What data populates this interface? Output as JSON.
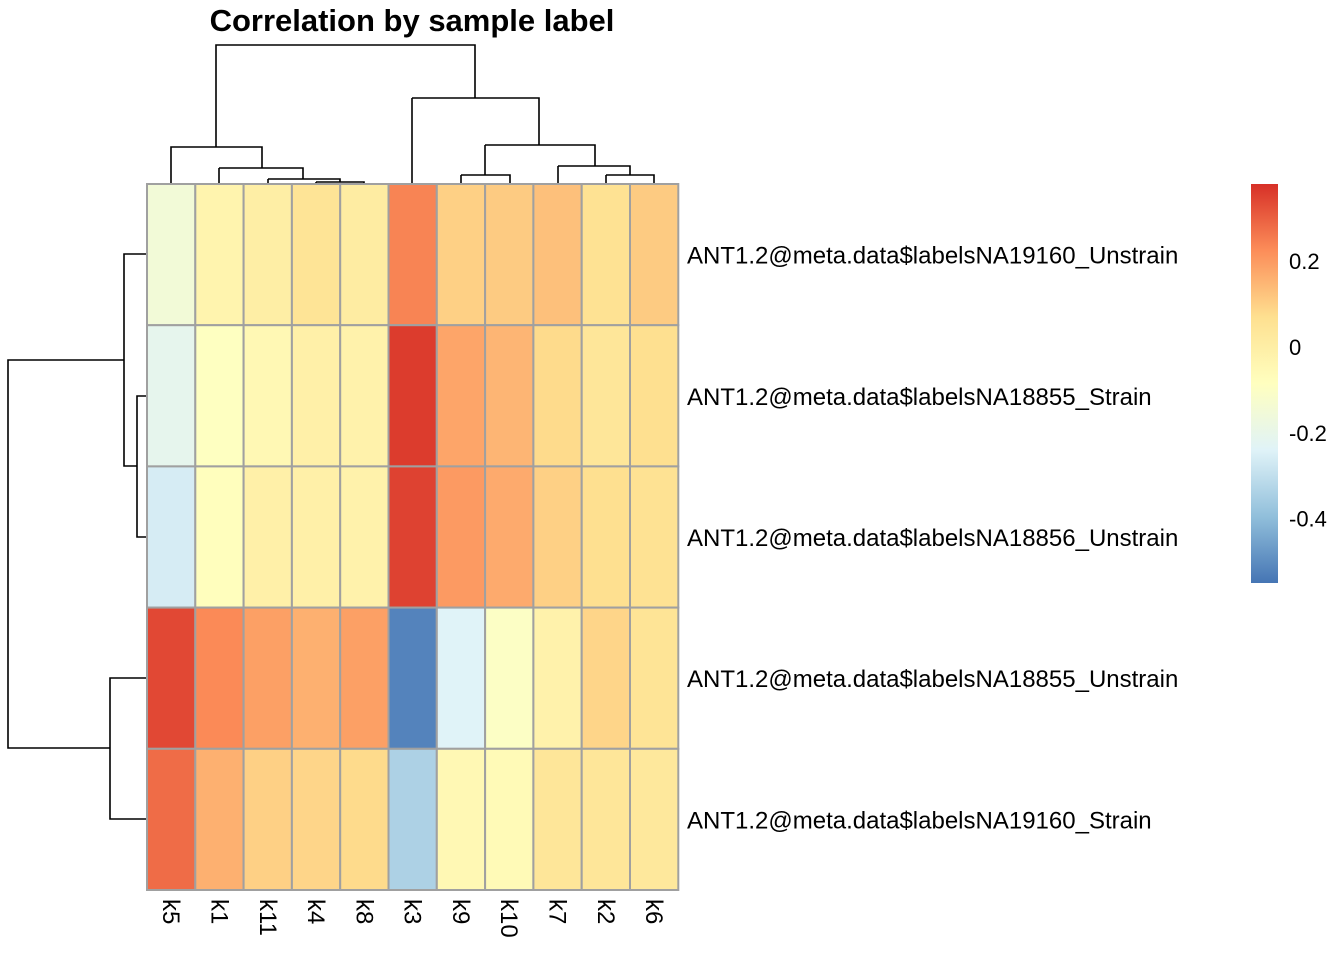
{
  "chart_data": {
    "type": "heatmap",
    "title": "Correlation by sample label",
    "columns": [
      "k5",
      "k1",
      "k11",
      "k4",
      "k8",
      "k3",
      "k9",
      "k10",
      "k7",
      "k2",
      "k6"
    ],
    "rows": [
      "ANT1.2@meta.data$labelsNA19160_Unstrain",
      "ANT1.2@meta.data$labelsNA18855_Strain",
      "ANT1.2@meta.data$labelsNA18856_Unstrain",
      "ANT1.2@meta.data$labelsNA18855_Unstrain",
      "ANT1.2@meta.data$labelsNA19160_Strain"
    ],
    "values": [
      [
        -0.15,
        -0.03,
        0.0,
        0.05,
        0.01,
        0.24,
        0.1,
        0.11,
        0.13,
        0.06,
        0.11
      ],
      [
        -0.21,
        -0.09,
        -0.05,
        -0.01,
        -0.02,
        0.36,
        0.18,
        0.15,
        0.08,
        0.04,
        0.07
      ],
      [
        -0.26,
        -0.08,
        -0.01,
        -0.01,
        -0.02,
        0.35,
        0.2,
        0.17,
        0.1,
        0.07,
        0.06
      ],
      [
        0.34,
        0.23,
        0.19,
        0.16,
        0.19,
        -0.52,
        -0.24,
        -0.1,
        -0.02,
        0.09,
        0.05
      ],
      [
        0.28,
        0.16,
        0.1,
        0.09,
        0.08,
        -0.34,
        -0.05,
        -0.06,
        0.04,
        0.04,
        0.03
      ]
    ],
    "color_scale": {
      "min": -0.55,
      "max": 0.38,
      "colors": [
        "#4575b4",
        "#91bfdb",
        "#e0f3f8",
        "#ffffbf",
        "#fee090",
        "#fc8d59",
        "#d73027"
      ],
      "ticks": [
        0.2,
        0,
        -0.2,
        -0.4
      ],
      "tick_labels": [
        "0.2",
        "0",
        "-0.2",
        "-0.4"
      ]
    },
    "legend": "right"
  }
}
